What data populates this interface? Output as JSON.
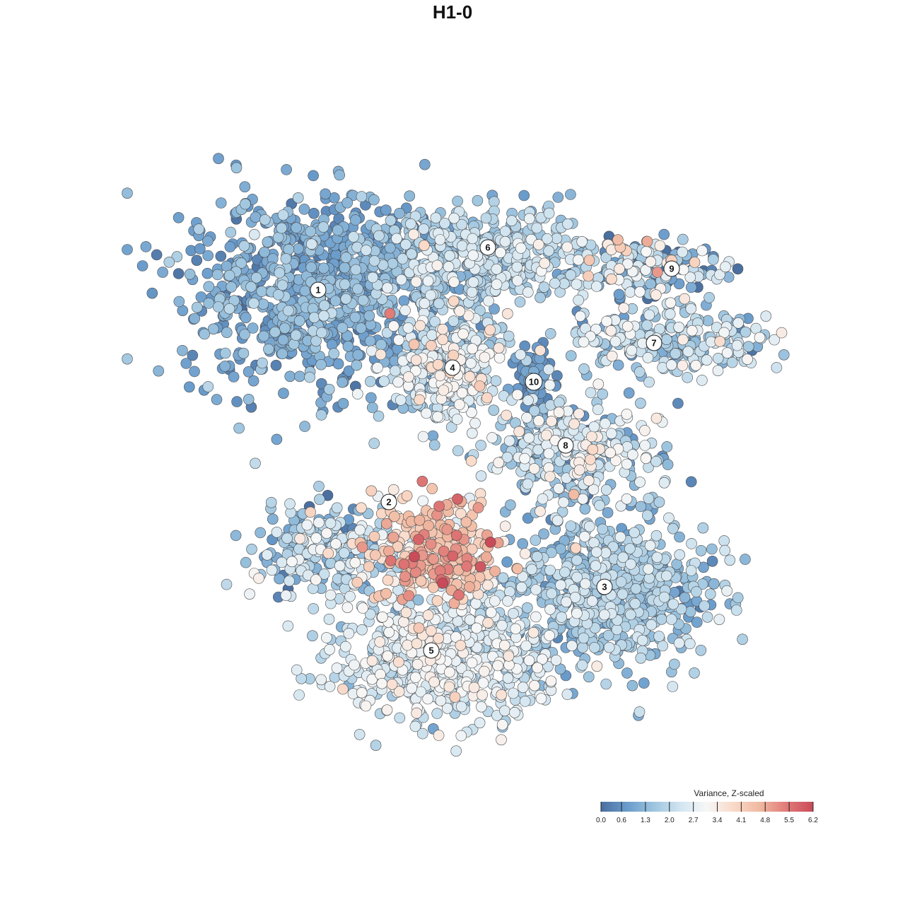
{
  "chart_data": {
    "type": "scatter",
    "title": "H1-0",
    "xlabel": "",
    "ylabel": "",
    "legend": {
      "title": "Variance, Z-scaled",
      "placement": "bottom-right",
      "min": 0.0,
      "max": 6.2,
      "ticks": [
        "0.0",
        "0.6",
        "1.3",
        "2.0",
        "2.7",
        "3.4",
        "4.1",
        "4.8",
        "5.5",
        "6.2"
      ],
      "colors": [
        "#4a6fa0",
        "#6a9ccc",
        "#9ec5df",
        "#d2e5f0",
        "#f7f7f7",
        "#f9d9c8",
        "#f0b8a0",
        "#e07a78",
        "#c94a58"
      ]
    },
    "clusters": [
      {
        "id": "1",
        "x": 0.29,
        "y": 0.73,
        "n": 900,
        "sx": 0.095,
        "sy": 0.065,
        "mean": 1.0,
        "sd": 0.45
      },
      {
        "id": "6",
        "x": 0.53,
        "y": 0.78,
        "n": 420,
        "sx": 0.08,
        "sy": 0.035,
        "mean": 1.9,
        "sd": 0.55
      },
      {
        "id": "4",
        "x": 0.47,
        "y": 0.62,
        "n": 330,
        "sx": 0.045,
        "sy": 0.04,
        "mean": 2.4,
        "sd": 0.7
      },
      {
        "id": "10",
        "x": 0.595,
        "y": 0.6,
        "n": 90,
        "sx": 0.012,
        "sy": 0.025,
        "mean": 0.6,
        "sd": 0.25
      },
      {
        "id": "9",
        "x": 0.76,
        "y": 0.76,
        "n": 150,
        "sx": 0.05,
        "sy": 0.02,
        "mean": 1.7,
        "sd": 1.3
      },
      {
        "id": "7",
        "x": 0.78,
        "y": 0.66,
        "n": 230,
        "sx": 0.075,
        "sy": 0.025,
        "mean": 2.0,
        "sd": 0.7
      },
      {
        "id": "8",
        "x": 0.65,
        "y": 0.5,
        "n": 330,
        "sx": 0.06,
        "sy": 0.04,
        "mean": 2.0,
        "sd": 0.9
      },
      {
        "id": "2",
        "x": 0.3,
        "y": 0.36,
        "n": 240,
        "sx": 0.05,
        "sy": 0.035,
        "mean": 1.8,
        "sd": 0.8
      },
      {
        "id": "3",
        "x": 0.7,
        "y": 0.3,
        "n": 650,
        "sx": 0.07,
        "sy": 0.055,
        "mean": 1.6,
        "sd": 0.5
      },
      {
        "id": "5",
        "x": 0.47,
        "y": 0.21,
        "n": 650,
        "sx": 0.075,
        "sy": 0.045,
        "mean": 2.4,
        "sd": 0.55
      },
      {
        "id": "core",
        "x": 0.46,
        "y": 0.36,
        "n": 300,
        "sx": 0.045,
        "sy": 0.04,
        "mean": 4.2,
        "sd": 0.75
      }
    ],
    "cluster_label_positions": [
      {
        "id": "1",
        "x": 0.29,
        "y": 0.73
      },
      {
        "id": "6",
        "x": 0.53,
        "y": 0.79
      },
      {
        "id": "4",
        "x": 0.48,
        "y": 0.62
      },
      {
        "id": "10",
        "x": 0.595,
        "y": 0.6
      },
      {
        "id": "9",
        "x": 0.79,
        "y": 0.76
      },
      {
        "id": "7",
        "x": 0.765,
        "y": 0.655
      },
      {
        "id": "8",
        "x": 0.64,
        "y": 0.51
      },
      {
        "id": "2",
        "x": 0.39,
        "y": 0.43
      },
      {
        "id": "3",
        "x": 0.695,
        "y": 0.31
      },
      {
        "id": "5",
        "x": 0.45,
        "y": 0.22
      }
    ],
    "xlim": [
      0,
      1
    ],
    "ylim": [
      0,
      1
    ],
    "grid": false
  }
}
